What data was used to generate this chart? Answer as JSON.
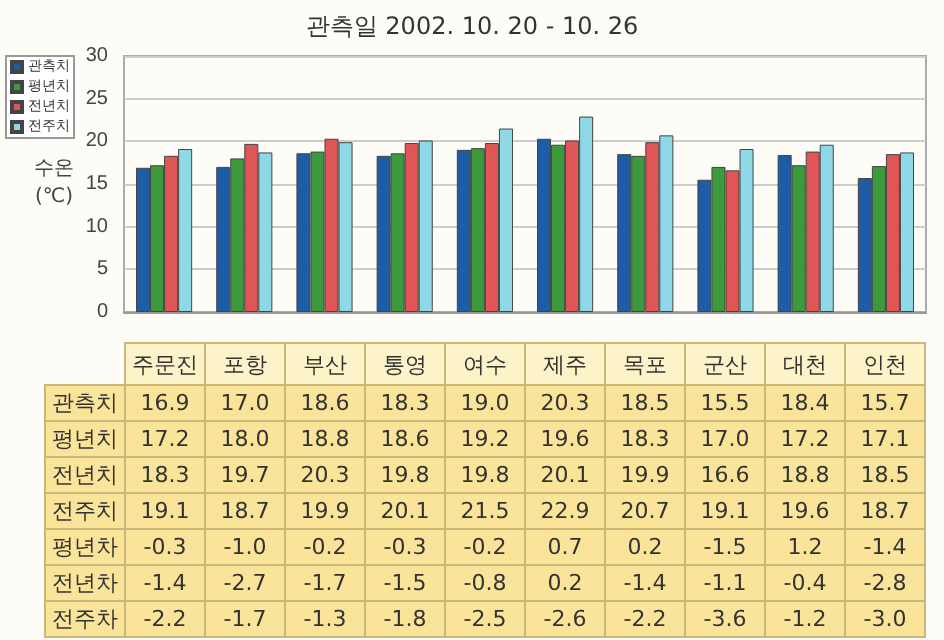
{
  "chart_data": {
    "type": "bar",
    "title": "관측일 2002. 10. 20 - 10. 26",
    "ylabel": "수온 (℃)",
    "categories": [
      "주문진",
      "포항",
      "부산",
      "통영",
      "여수",
      "제주",
      "목포",
      "군산",
      "대천",
      "인천"
    ],
    "series": [
      {
        "name": "관측치",
        "color": "#1f5ca8",
        "values": [
          16.9,
          17.0,
          18.6,
          18.3,
          19.0,
          20.3,
          18.5,
          15.5,
          18.4,
          15.7
        ],
        "value_labels": [
          "16.9",
          "17.0",
          "18.6",
          "18.3",
          "19.0",
          "20.3",
          "18.5",
          "15.5",
          "18.4",
          "15.7"
        ]
      },
      {
        "name": "평년치",
        "color": "#3c9a3c",
        "values": [
          17.2,
          18.0,
          18.8,
          18.6,
          19.2,
          19.6,
          18.3,
          17.0,
          17.2,
          17.1
        ],
        "value_labels": [
          "17.2",
          "18.0",
          "18.8",
          "18.6",
          "19.2",
          "19.6",
          "18.3",
          "17.0",
          "17.2",
          "17.1"
        ]
      },
      {
        "name": "전년치",
        "color": "#e05555",
        "values": [
          18.3,
          19.7,
          20.3,
          19.8,
          19.8,
          20.1,
          19.9,
          16.6,
          18.8,
          18.5
        ],
        "value_labels": [
          "18.3",
          "19.7",
          "20.3",
          "19.8",
          "19.8",
          "20.1",
          "19.9",
          "16.6",
          "18.8",
          "18.5"
        ]
      },
      {
        "name": "전주치",
        "color": "#8ed8e8",
        "values": [
          19.1,
          18.7,
          19.9,
          20.1,
          21.5,
          22.9,
          20.7,
          19.1,
          19.6,
          18.7
        ],
        "value_labels": [
          "19.1",
          "18.7",
          "19.9",
          "20.1",
          "21.5",
          "22.9",
          "20.7",
          "19.1",
          "19.6",
          "18.7"
        ]
      }
    ],
    "annotations": [
      "평년차",
      "-0.3",
      "-1.0",
      "-0.2",
      "-0.3",
      "-0.2",
      "0.7",
      "0.2",
      "-1.5",
      "1.2",
      "-1.4",
      "전년차",
      "-1.4",
      "-2.7",
      "-1.7",
      "-1.5",
      "-0.8",
      "0.2",
      "-1.4",
      "-1.1",
      "-0.4",
      "-2.8",
      "전주차",
      "-2.2",
      "-1.7",
      "-1.3",
      "-1.8",
      "-2.5",
      "-2.6",
      "-2.2",
      "-3.6",
      "-1.2",
      "-3.0"
    ],
    "ylim": [
      0,
      30
    ],
    "yticks": [
      0,
      5,
      10,
      15,
      20,
      25,
      30
    ],
    "grid": "y",
    "legend": "top left",
    "tick_labels": "y"
  }
}
